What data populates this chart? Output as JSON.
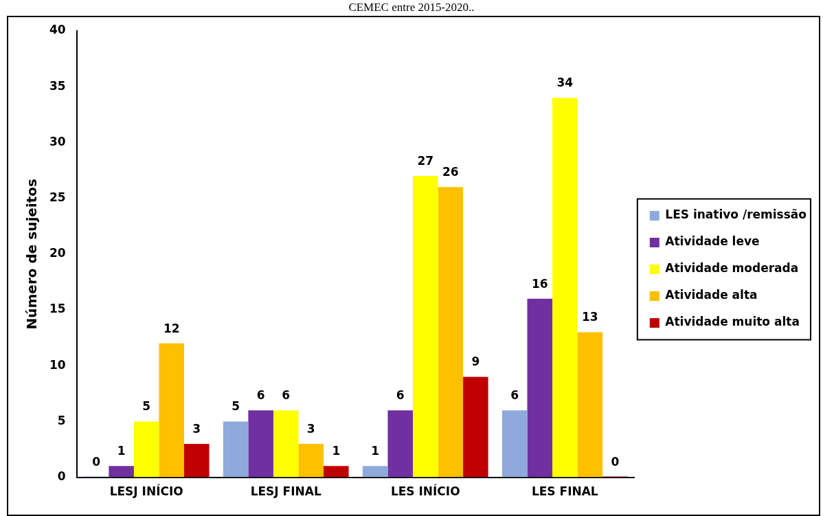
{
  "chart_data": {
    "type": "bar",
    "title": "CEMEC entre 2015-2020..",
    "ylabel": "Número de sujeitos",
    "categories": [
      "LESJ INÍCIO",
      "LESJ FINAL",
      "LES INÍCIO",
      "LES FINAL"
    ],
    "series": [
      {
        "name": "LES inativo /remissão",
        "color": "#8eaadb",
        "values": [
          0,
          5,
          1,
          6
        ]
      },
      {
        "name": "Atividade leve",
        "color": "#7030a0",
        "values": [
          1,
          6,
          6,
          16
        ]
      },
      {
        "name": "Atividade moderada",
        "color": "#ffff00",
        "values": [
          5,
          6,
          27,
          34
        ]
      },
      {
        "name": "Atividade alta",
        "color": "#ffc000",
        "values": [
          12,
          3,
          26,
          13
        ]
      },
      {
        "name": "Atividade muito alta",
        "color": "#c00000",
        "values": [
          3,
          1,
          9,
          0
        ]
      }
    ],
    "ylim": [
      0,
      40
    ],
    "yticks": [
      0,
      5,
      10,
      15,
      20,
      25,
      30,
      35,
      40
    ],
    "grid": false,
    "legend": "right",
    "data_labels": true
  }
}
